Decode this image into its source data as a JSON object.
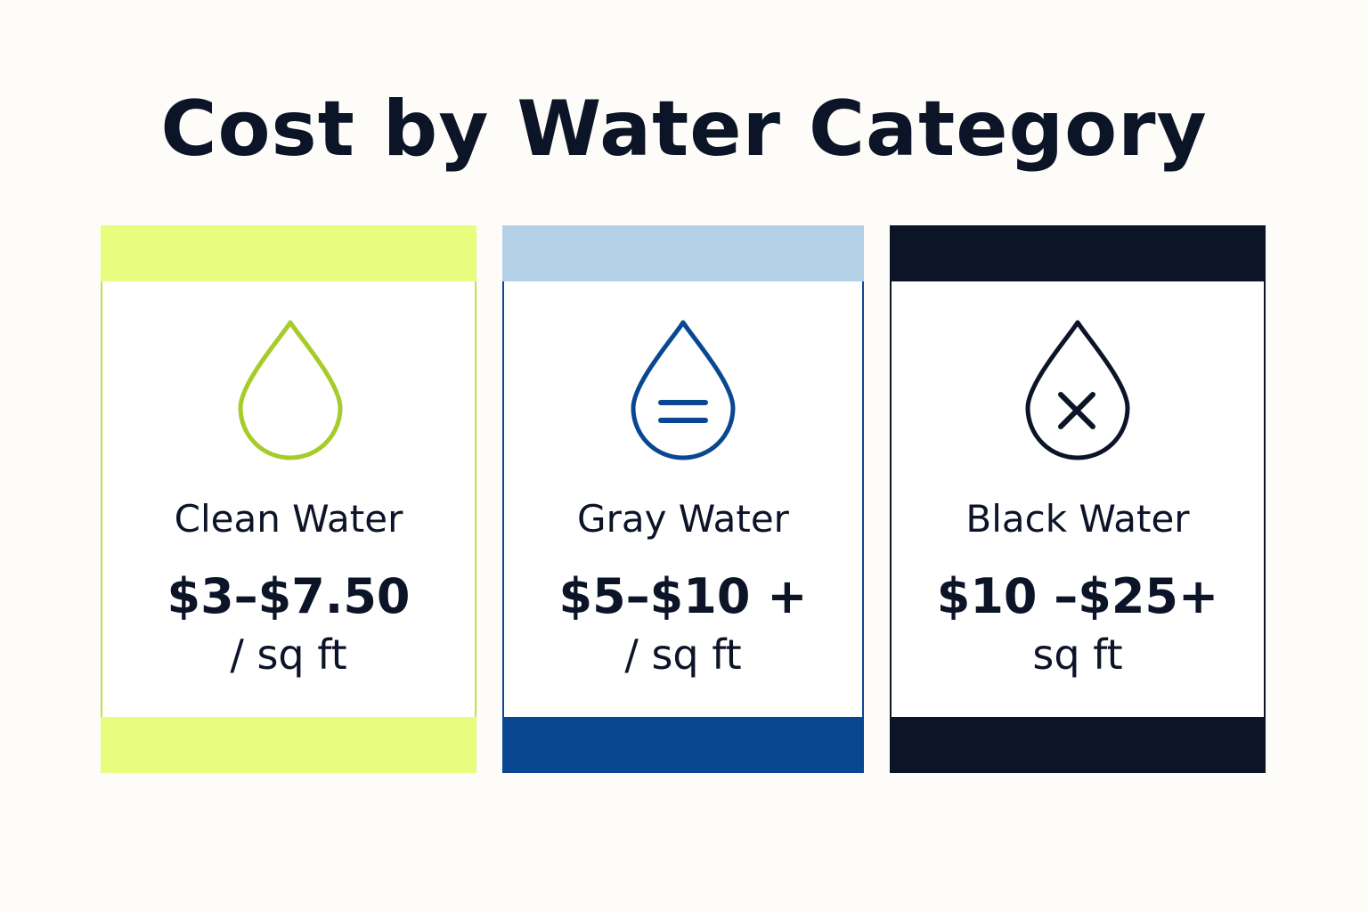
{
  "header": {
    "title": "Cost by Water Category"
  },
  "cards": [
    {
      "name": "Clean Water",
      "price": "$3–$7.50",
      "unit": "/ sq ft"
    },
    {
      "name": "Gray Water",
      "price": "$5–$10 +",
      "unit": "/ sq ft"
    },
    {
      "name": "Black Water",
      "price": "$10 –$25+",
      "unit": "sq ft"
    }
  ]
}
